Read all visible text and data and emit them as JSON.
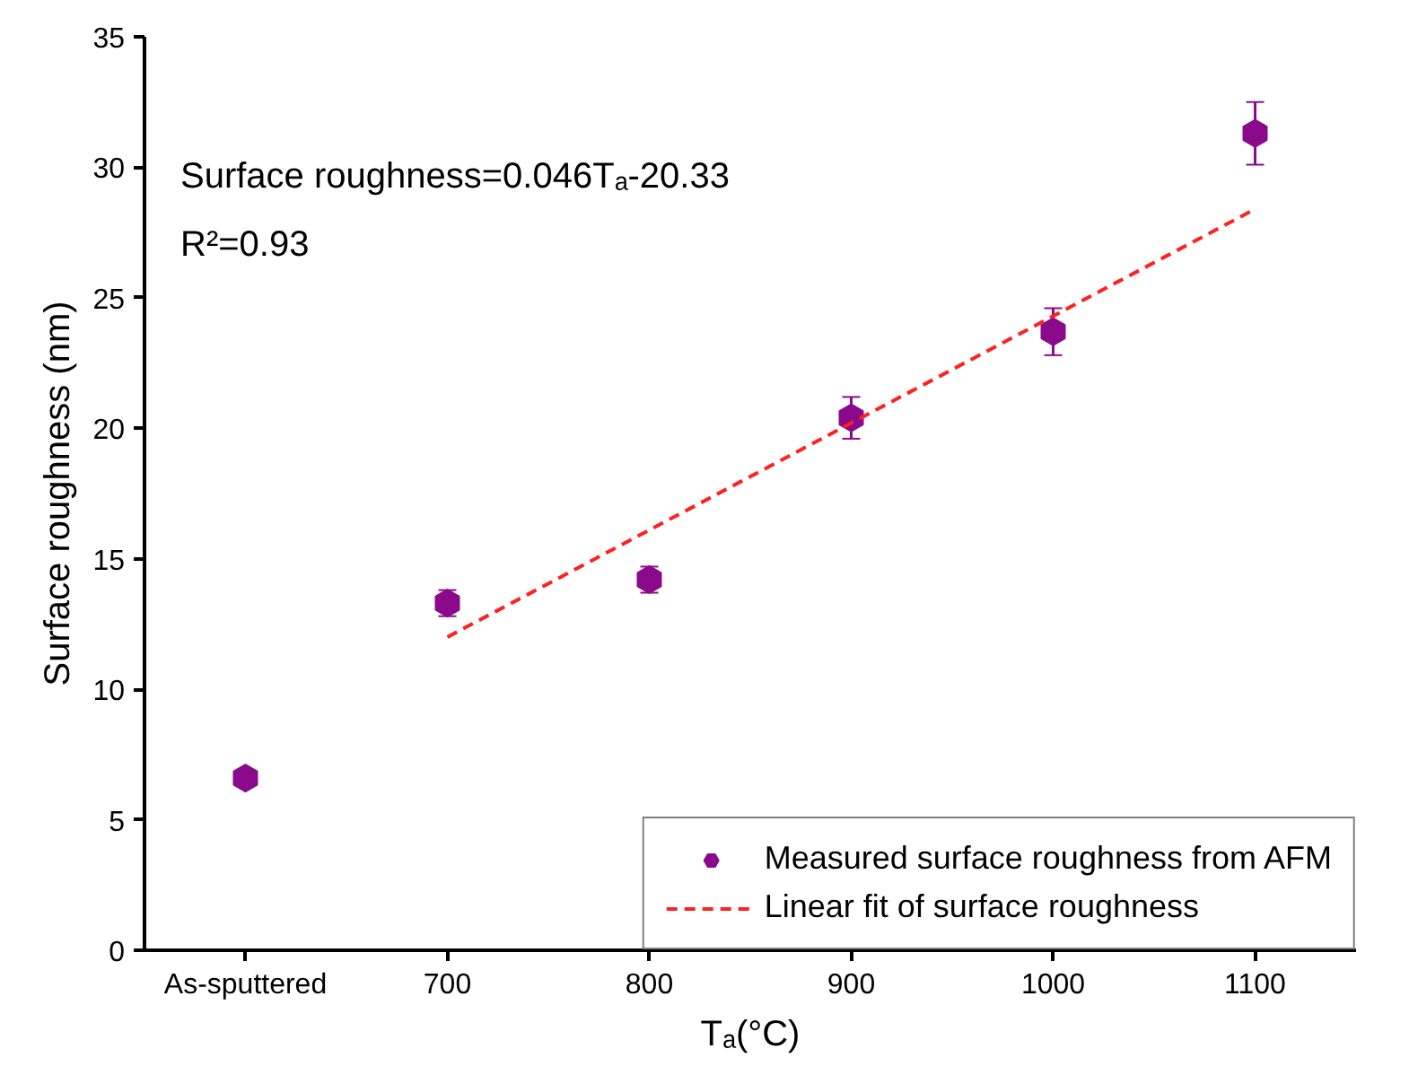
{
  "chart_data": {
    "type": "scatter",
    "xlabel": "Tₐ(°C)",
    "ylabel": "Surface roughness (nm)",
    "x": [
      600,
      700,
      800,
      900,
      1000,
      1100
    ],
    "series": [
      {
        "name": "Measured surface roughness from AFM",
        "color": "#8b0a8b",
        "values": [
          6.6,
          13.3,
          14.2,
          20.4,
          23.7,
          31.3
        ],
        "errors": [
          null,
          0.5,
          0.5,
          0.8,
          0.9,
          1.2
        ]
      },
      {
        "name": "Linear fit of surface roughness",
        "color": "#ff2020",
        "type": "line",
        "line_style": "dashed",
        "x": [
          700,
          1100
        ],
        "values": [
          12.0,
          28.4
        ]
      }
    ],
    "xlim": [
      550,
      1150
    ],
    "xticks": [
      {
        "value": 600,
        "label": "As-sputtered"
      },
      700,
      800,
      900,
      1000,
      1100
    ],
    "ylim": [
      0,
      35
    ],
    "yticks": [
      0,
      5,
      10,
      15,
      20,
      25,
      30,
      35
    ],
    "annotations": [
      "Surface roughness=0.046Tₐ-20.33",
      "R²=0.93"
    ],
    "grid": false,
    "legend": "bottom right"
  }
}
